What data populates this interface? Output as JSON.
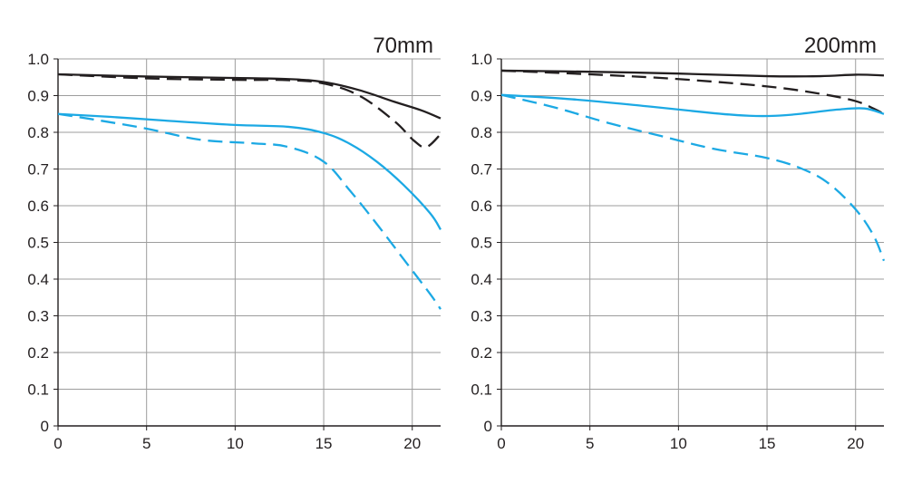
{
  "chart_data": [
    {
      "type": "line",
      "title": "70mm",
      "xlabel": "",
      "ylabel": "",
      "xlim": [
        0,
        21.6
      ],
      "ylim": [
        0,
        1.0
      ],
      "xticks": [
        0,
        5,
        10,
        15,
        20
      ],
      "yticks": [
        0,
        0.1,
        0.2,
        0.3,
        0.4,
        0.5,
        0.6,
        0.7,
        0.8,
        0.9,
        1.0
      ],
      "ytick_labels": [
        "0",
        "0.1",
        "0.2",
        "0.3",
        "0.4",
        "0.5",
        "0.6",
        "0.7",
        "0.8",
        "0.9",
        "1.0"
      ],
      "xtick_labels": [
        "0",
        "5",
        "10",
        "15",
        "20"
      ],
      "grid": true,
      "series": [
        {
          "color": "#231f20",
          "dash": "solid",
          "points": [
            [
              0,
              0.958
            ],
            [
              5,
              0.952
            ],
            [
              10,
              0.948
            ],
            [
              13,
              0.945
            ],
            [
              15,
              0.937
            ],
            [
              17,
              0.915
            ],
            [
              19,
              0.883
            ],
            [
              20.5,
              0.86
            ],
            [
              21.6,
              0.838
            ]
          ]
        },
        {
          "color": "#231f20",
          "dash": "dashed",
          "points": [
            [
              0,
              0.958
            ],
            [
              5,
              0.947
            ],
            [
              10,
              0.943
            ],
            [
              13,
              0.942
            ],
            [
              15,
              0.933
            ],
            [
              17,
              0.9
            ],
            [
              19,
              0.83
            ],
            [
              20.1,
              0.777
            ],
            [
              20.8,
              0.76
            ],
            [
              21.6,
              0.795
            ]
          ]
        },
        {
          "color": "#1ca9e4",
          "dash": "solid",
          "points": [
            [
              0,
              0.85
            ],
            [
              3,
              0.842
            ],
            [
              6,
              0.832
            ],
            [
              10,
              0.82
            ],
            [
              13,
              0.815
            ],
            [
              15,
              0.798
            ],
            [
              16.5,
              0.768
            ],
            [
              18,
              0.72
            ],
            [
              19.5,
              0.657
            ],
            [
              21,
              0.58
            ],
            [
              21.6,
              0.535
            ]
          ]
        },
        {
          "color": "#1ca9e4",
          "dash": "dashed",
          "points": [
            [
              0,
              0.85
            ],
            [
              2,
              0.835
            ],
            [
              5,
              0.81
            ],
            [
              8,
              0.78
            ],
            [
              11,
              0.77
            ],
            [
              13,
              0.76
            ],
            [
              15,
              0.72
            ],
            [
              16.5,
              0.64
            ],
            [
              18,
              0.55
            ],
            [
              19.5,
              0.455
            ],
            [
              21,
              0.36
            ],
            [
              21.6,
              0.318
            ]
          ]
        }
      ]
    },
    {
      "type": "line",
      "title": "200mm",
      "xlabel": "",
      "ylabel": "",
      "xlim": [
        0,
        21.6
      ],
      "ylim": [
        0,
        1.0
      ],
      "xticks": [
        0,
        5,
        10,
        15,
        20
      ],
      "yticks": [
        0,
        0.1,
        0.2,
        0.3,
        0.4,
        0.5,
        0.6,
        0.7,
        0.8,
        0.9,
        1.0
      ],
      "ytick_labels": [
        "0",
        "0.1",
        "0.2",
        "0.3",
        "0.4",
        "0.5",
        "0.6",
        "0.7",
        "0.8",
        "0.9",
        "1.0"
      ],
      "xtick_labels": [
        "0",
        "5",
        "10",
        "15",
        "20"
      ],
      "grid": true,
      "series": [
        {
          "color": "#231f20",
          "dash": "solid",
          "points": [
            [
              0,
              0.968
            ],
            [
              5,
              0.965
            ],
            [
              10,
              0.96
            ],
            [
              15,
              0.953
            ],
            [
              18,
              0.953
            ],
            [
              20,
              0.957
            ],
            [
              21.6,
              0.955
            ]
          ]
        },
        {
          "color": "#231f20",
          "dash": "dashed",
          "points": [
            [
              0,
              0.968
            ],
            [
              5,
              0.958
            ],
            [
              10,
              0.945
            ],
            [
              15,
              0.925
            ],
            [
              18,
              0.905
            ],
            [
              20,
              0.885
            ],
            [
              21,
              0.865
            ],
            [
              21.6,
              0.85
            ]
          ]
        },
        {
          "color": "#1ca9e4",
          "dash": "solid",
          "points": [
            [
              0,
              0.902
            ],
            [
              4,
              0.89
            ],
            [
              8,
              0.872
            ],
            [
              12,
              0.852
            ],
            [
              14,
              0.845
            ],
            [
              15.5,
              0.845
            ],
            [
              17,
              0.851
            ],
            [
              19,
              0.862
            ],
            [
              20.5,
              0.865
            ],
            [
              21.6,
              0.85
            ]
          ]
        },
        {
          "color": "#1ca9e4",
          "dash": "dashed",
          "points": [
            [
              0,
              0.902
            ],
            [
              3,
              0.868
            ],
            [
              6,
              0.826
            ],
            [
              9,
              0.79
            ],
            [
              12,
              0.755
            ],
            [
              15,
              0.73
            ],
            [
              17,
              0.7
            ],
            [
              18.5,
              0.66
            ],
            [
              20,
              0.59
            ],
            [
              21,
              0.52
            ],
            [
              21.6,
              0.45
            ]
          ]
        }
      ]
    }
  ]
}
